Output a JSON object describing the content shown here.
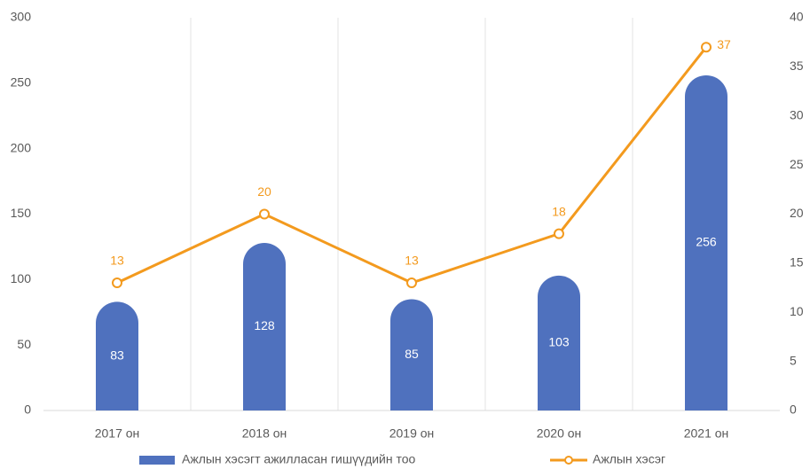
{
  "chart_data": {
    "type": "bar",
    "categories": [
      "2017 он",
      "2018 он",
      "2019 он",
      "2020 он",
      "2021 он"
    ],
    "series": [
      {
        "name": "Ажлын хэсэгт ажилласан гишүүдийн тоо",
        "type": "bar",
        "color": "#4f71be",
        "values": [
          83,
          128,
          85,
          103,
          256
        ]
      },
      {
        "name": "Ажлын хэсэг",
        "type": "line",
        "axis": "y2",
        "color": "#f39a1e",
        "values": [
          13,
          20,
          13,
          18,
          37
        ]
      }
    ],
    "ylim": [
      0,
      300
    ],
    "yticks": [
      0,
      50,
      100,
      150,
      200,
      250,
      300
    ],
    "y2lim": [
      0,
      40
    ],
    "y2ticks": [
      0,
      5,
      10,
      15,
      20,
      25,
      30,
      35,
      40
    ],
    "legend": "bottom"
  }
}
